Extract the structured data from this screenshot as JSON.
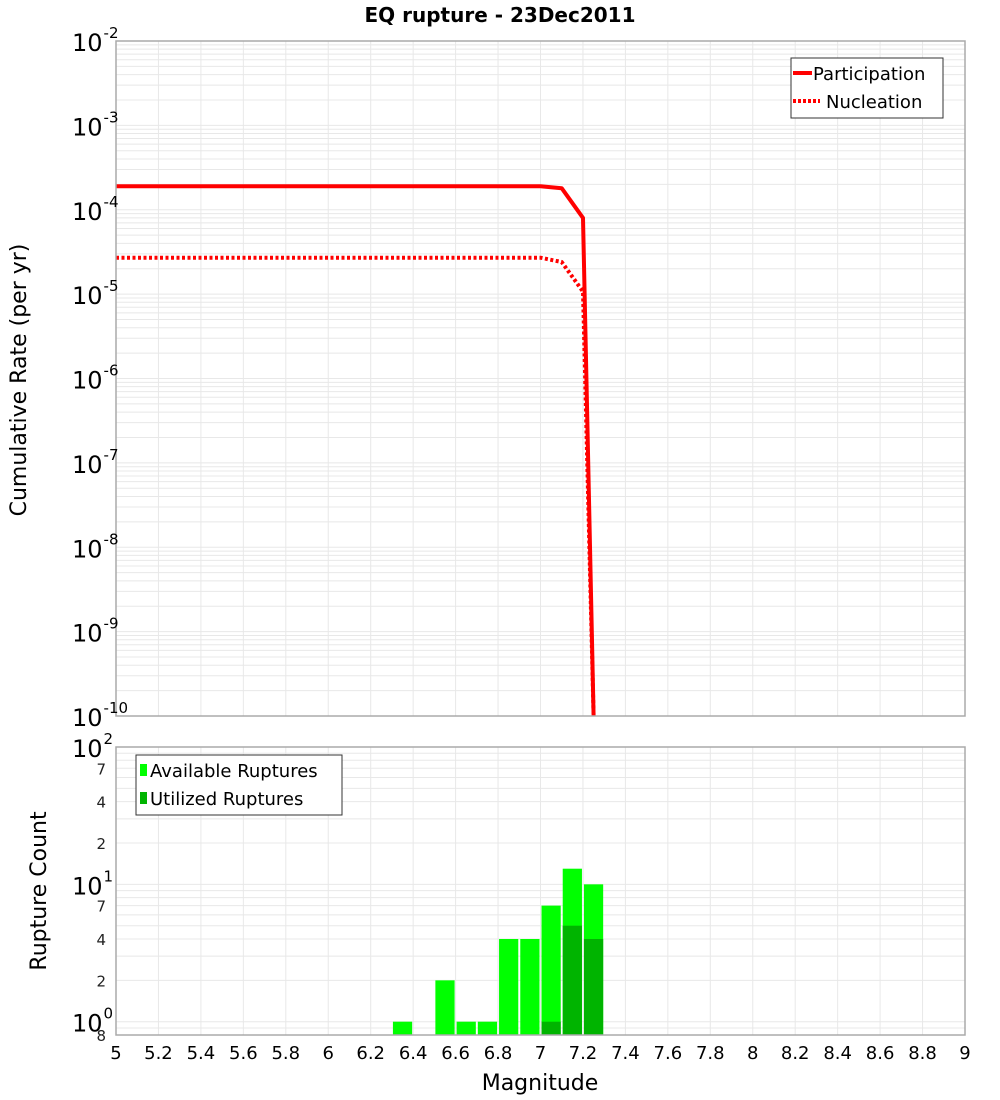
{
  "chart_data": [
    {
      "type": "line",
      "title": "EQ rupture - 23Dec2011",
      "xlabel": "Magnitude",
      "ylabel": "Cumulative Rate (per yr)",
      "xlim": [
        5,
        9
      ],
      "ylim": [
        1e-10,
        0.01
      ],
      "yscale": "log",
      "grid": true,
      "legend_position": "top-right",
      "y_ticks": [
        "10^-2",
        "10^-3",
        "10^-4",
        "10^-5",
        "10^-6",
        "10^-7",
        "10^-8",
        "10^-9",
        "10^-10"
      ],
      "series": [
        {
          "name": "Participation",
          "style": "solid",
          "color": "#ff0000",
          "x": [
            5.0,
            6.0,
            7.0,
            7.1,
            7.2,
            7.25
          ],
          "y": [
            0.00019,
            0.00019,
            0.00019,
            0.00018,
            8e-05,
            1e-10
          ]
        },
        {
          "name": "Nucleation",
          "style": "dotted",
          "color": "#ff0000",
          "x": [
            5.0,
            6.0,
            7.0,
            7.1,
            7.2,
            7.25
          ],
          "y": [
            2.7e-05,
            2.7e-05,
            2.7e-05,
            2.4e-05,
            1.07e-05,
            1e-10
          ]
        }
      ]
    },
    {
      "type": "bar",
      "xlabel": "Magnitude",
      "ylabel": "Rupture Count",
      "xlim": [
        5,
        9
      ],
      "ylim": [
        0.8,
        100
      ],
      "yscale": "log",
      "grid": true,
      "legend_position": "top-left",
      "x_ticks": [
        "5",
        "5.2",
        "5.4",
        "5.6",
        "5.8",
        "6",
        "6.2",
        "6.4",
        "6.6",
        "6.8",
        "7",
        "7.2",
        "7.4",
        "7.6",
        "7.8",
        "8",
        "8.2",
        "8.4",
        "8.6",
        "8.8",
        "9"
      ],
      "bin_width": 0.1,
      "categories": [
        6.3,
        6.5,
        6.6,
        6.7,
        6.8,
        6.9,
        7.0,
        7.1,
        7.2
      ],
      "series": [
        {
          "name": "Available Ruptures",
          "color": "#00ff00",
          "values": [
            1,
            2,
            1,
            1,
            4,
            4,
            7,
            13,
            10
          ]
        },
        {
          "name": "Utilized Ruptures",
          "color": "#00b400",
          "values": [
            0,
            0,
            0,
            0,
            0,
            0,
            1,
            5,
            4
          ]
        }
      ]
    }
  ],
  "title": "EQ rupture - 23Dec2011",
  "top": {
    "ylabel": "Cumulative Rate (per yr)",
    "yticks": [
      {
        "base": "10",
        "exp": "-2"
      },
      {
        "base": "10",
        "exp": "-3"
      },
      {
        "base": "10",
        "exp": "-4"
      },
      {
        "base": "10",
        "exp": "-5"
      },
      {
        "base": "10",
        "exp": "-6"
      },
      {
        "base": "10",
        "exp": "-7"
      },
      {
        "base": "10",
        "exp": "-8"
      },
      {
        "base": "10",
        "exp": "-9"
      },
      {
        "base": "10",
        "exp": "-10"
      }
    ],
    "legend": [
      {
        "label": "Participation"
      },
      {
        "label": "Nucleation"
      }
    ]
  },
  "bottom": {
    "ylabel": "Rupture Count",
    "major": [
      {
        "base": "10",
        "exp": "2"
      },
      {
        "base": "10",
        "exp": "1"
      },
      {
        "base": "10",
        "exp": "0"
      }
    ],
    "minor": [
      "7",
      "4",
      "2",
      "7",
      "4",
      "2",
      "8"
    ],
    "legend": [
      {
        "label": "Available Ruptures"
      },
      {
        "label": "Utilized Ruptures"
      }
    ]
  },
  "xaxis": {
    "label": "Magnitude",
    "ticks": [
      "5",
      "5.2",
      "5.4",
      "5.6",
      "5.8",
      "6",
      "6.2",
      "6.4",
      "6.6",
      "6.8",
      "7",
      "7.2",
      "7.4",
      "7.6",
      "7.8",
      "8",
      "8.2",
      "8.4",
      "8.6",
      "8.8",
      "9"
    ]
  },
  "colors": {
    "line": "#ff0000",
    "available": "#00ff00",
    "utilized": "#00b400",
    "grid": "#e8e8e8",
    "frame": "#aaaaaa"
  }
}
